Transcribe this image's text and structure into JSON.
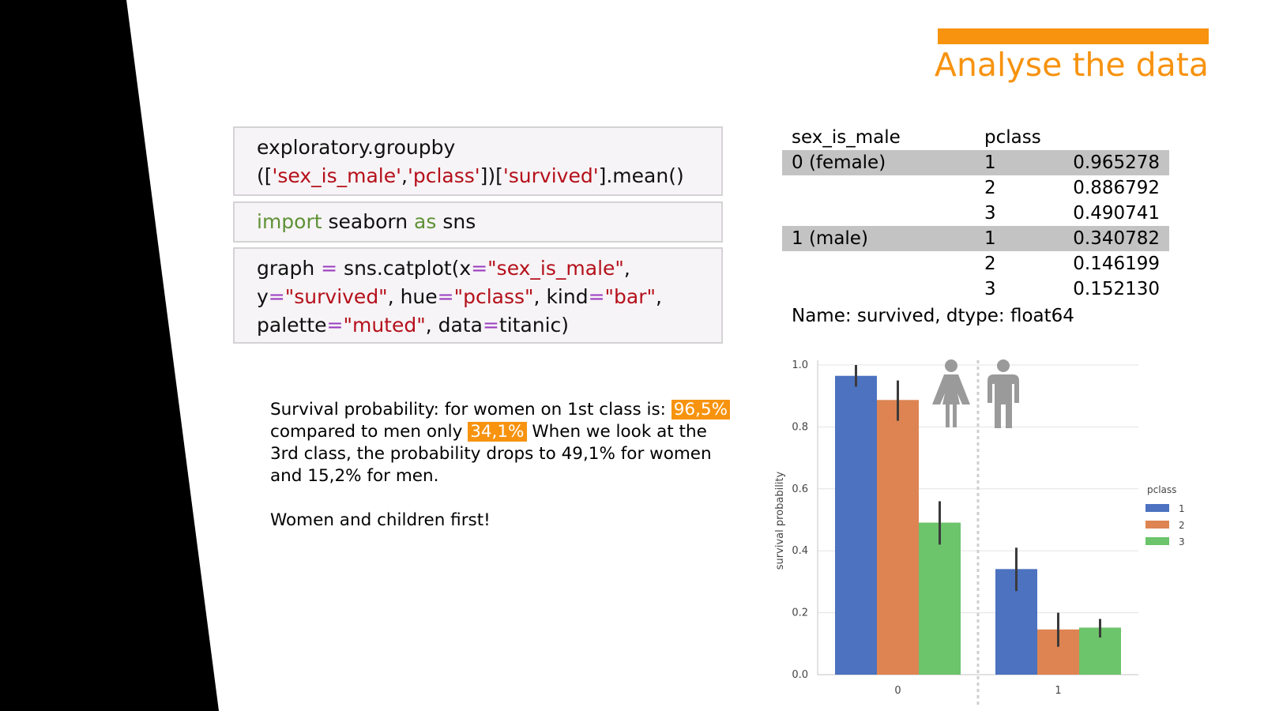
{
  "slide": {
    "title": "Analyse the data",
    "accent_color": "#f7930f"
  },
  "code_blocks": [
    {
      "lines": [
        [
          {
            "t": "exploratory.groupby",
            "c": ""
          }
        ],
        [
          {
            "t": "([",
            "c": ""
          },
          {
            "t": "'sex_is_male'",
            "c": "s"
          },
          {
            "t": ",",
            "c": ""
          },
          {
            "t": "'pclass'",
            "c": "s"
          },
          {
            "t": "])[",
            "c": ""
          },
          {
            "t": "'survived'",
            "c": "s"
          },
          {
            "t": "].mean()",
            "c": ""
          }
        ]
      ]
    },
    {
      "lines": [
        [
          {
            "t": "import",
            "c": "k"
          },
          {
            "t": " seaborn ",
            "c": ""
          },
          {
            "t": "as",
            "c": "k"
          },
          {
            "t": " sns",
            "c": ""
          }
        ]
      ]
    },
    {
      "lines": [
        [
          {
            "t": "graph ",
            "c": ""
          },
          {
            "t": "=",
            "c": "o"
          },
          {
            "t": " sns.catplot(x",
            "c": ""
          },
          {
            "t": "=",
            "c": "o"
          },
          {
            "t": "\"sex_is_male\"",
            "c": "s"
          },
          {
            "t": ",",
            "c": ""
          }
        ],
        [
          {
            "t": "y",
            "c": ""
          },
          {
            "t": "=",
            "c": "o"
          },
          {
            "t": "\"survived\"",
            "c": "s"
          },
          {
            "t": ", hue",
            "c": ""
          },
          {
            "t": "=",
            "c": "o"
          },
          {
            "t": "\"pclass\"",
            "c": "s"
          },
          {
            "t": ", kind",
            "c": ""
          },
          {
            "t": "=",
            "c": "o"
          },
          {
            "t": "\"bar\"",
            "c": "s"
          },
          {
            "t": ",",
            "c": ""
          }
        ],
        [
          {
            "t": "palette",
            "c": ""
          },
          {
            "t": "=",
            "c": "o"
          },
          {
            "t": "\"muted\"",
            "c": "s"
          },
          {
            "t": ", data",
            "c": ""
          },
          {
            "t": "=",
            "c": "o"
          },
          {
            "t": "titanic)",
            "c": ""
          }
        ]
      ]
    }
  ],
  "summary": {
    "line1_pre": "Survival probability: for women on 1st class is: ",
    "women_first_class": "96,5%",
    "line2_pre": "compared to men only ",
    "men_first_class": "34,1%",
    "line2_post": " When we look at the 3rd class, the probability drops to 49,1% for women and 15,2% for men.",
    "conclusion": "Women and children first!"
  },
  "groupby_output": {
    "headers": [
      "sex_is_male",
      "pclass",
      ""
    ],
    "rows": [
      {
        "sex": "0 (female)",
        "pclass": "1",
        "value": "0.965278",
        "shaded": true
      },
      {
        "sex": "",
        "pclass": "2",
        "value": "0.886792",
        "shaded": false
      },
      {
        "sex": "",
        "pclass": "3",
        "value": "0.490741",
        "shaded": false
      },
      {
        "sex": "1 (male)",
        "pclass": "1",
        "value": "0.340782",
        "shaded": true
      },
      {
        "sex": "",
        "pclass": "2",
        "value": "0.146199",
        "shaded": false
      },
      {
        "sex": "",
        "pclass": "3",
        "value": "0.152130",
        "shaded": false
      }
    ],
    "footer": "Name: survived, dtype: float64"
  },
  "chart_data": {
    "type": "bar",
    "categories": [
      "0",
      "1"
    ],
    "series": [
      {
        "name": "1",
        "color": "#4c72c0",
        "values": [
          0.965,
          0.341
        ],
        "err": [
          [
            0.93,
            1.0
          ],
          [
            0.27,
            0.41
          ]
        ]
      },
      {
        "name": "2",
        "color": "#dd8452",
        "values": [
          0.887,
          0.146
        ],
        "err": [
          [
            0.82,
            0.95
          ],
          [
            0.09,
            0.2
          ]
        ]
      },
      {
        "name": "3",
        "color": "#6cc46b",
        "values": [
          0.491,
          0.152
        ],
        "err": [
          [
            0.42,
            0.56
          ],
          [
            0.12,
            0.18
          ]
        ]
      }
    ],
    "xlabel": "",
    "ylabel": "survival probability",
    "ylim": [
      0,
      1.0
    ],
    "yticks": [
      "0.0",
      "0.2",
      "0.4",
      "0.6",
      "0.8",
      "1.0"
    ],
    "grid": true,
    "legend_title": "pclass",
    "legend_position": "right",
    "divider": "dotted vertical line between groups",
    "icons": [
      "female-person-icon",
      "male-person-icon"
    ]
  }
}
